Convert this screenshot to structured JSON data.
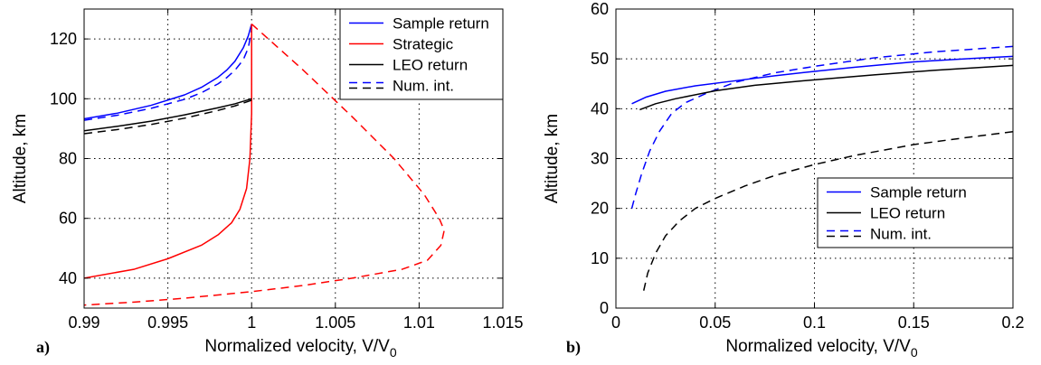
{
  "chart_data": [
    {
      "type": "line",
      "panel_label": "a)",
      "xlabel": "Normalized velocity, V/V",
      "xlabel_sub": "0",
      "ylabel": "Altitude, km",
      "xlim": [
        0.99,
        1.015
      ],
      "ylim": [
        30,
        130
      ],
      "xticks": [
        0.99,
        0.995,
        1,
        1.005,
        1.01,
        1.015
      ],
      "xtick_labels": [
        "0.99",
        "0.995",
        "1",
        "1.005",
        "1.01",
        "1.015"
      ],
      "yticks": [
        40,
        60,
        80,
        100,
        120
      ],
      "ytick_labels": [
        "40",
        "60",
        "80",
        "100",
        "120"
      ],
      "grid": true,
      "legend_position": "top-right",
      "legend": [
        {
          "label": "Sample return",
          "color": "#0000ff",
          "dash": false
        },
        {
          "label": "Strategic",
          "color": "#ff0000",
          "dash": false
        },
        {
          "label": "LEO return",
          "color": "#000000",
          "dash": false
        },
        {
          "label": "Num. int.",
          "color": "#0000ff",
          "dash": true,
          "color2": "#000000"
        }
      ],
      "series": [
        {
          "key": "sample_return",
          "color": "#0000ff",
          "dash": false,
          "points": [
            [
              0.99,
              93.3
            ],
            [
              0.992,
              95.2
            ],
            [
              0.994,
              97.8
            ],
            [
              0.996,
              101.3
            ],
            [
              0.997,
              103.8
            ],
            [
              0.998,
              107.2
            ],
            [
              0.9985,
              109.5
            ],
            [
              0.999,
              112.5
            ],
            [
              0.9995,
              117
            ],
            [
              0.9998,
              121
            ],
            [
              1.0,
              125
            ]
          ]
        },
        {
          "key": "sample_return_num",
          "color": "#0000ff",
          "dash": true,
          "points": [
            [
              0.99,
              92.8
            ],
            [
              0.992,
              94.5
            ],
            [
              0.994,
              96.8
            ],
            [
              0.996,
              99.8
            ],
            [
              0.997,
              102.0
            ],
            [
              0.998,
              105.0
            ],
            [
              0.9985,
              107.0
            ],
            [
              0.999,
              109.5
            ],
            [
              0.9995,
              113
            ],
            [
              0.9998,
              117
            ],
            [
              1.0,
              123
            ]
          ]
        },
        {
          "key": "strategic",
          "color": "#ff0000",
          "dash": false,
          "points": [
            [
              0.99,
              40
            ],
            [
              0.993,
              43
            ],
            [
              0.995,
              46.5
            ],
            [
              0.997,
              51
            ],
            [
              0.998,
              54.5
            ],
            [
              0.9988,
              58.5
            ],
            [
              0.9993,
              63
            ],
            [
              0.9997,
              70
            ],
            [
              0.9999,
              80
            ],
            [
              1.0,
              95
            ],
            [
              1.0,
              125
            ]
          ]
        },
        {
          "key": "strategic_num",
          "color": "#ff0000",
          "dash": true,
          "points": [
            [
              1.0,
              125
            ],
            [
              1.003,
              110
            ],
            [
              1.006,
              94
            ],
            [
              1.0085,
              80
            ],
            [
              1.0103,
              68
            ],
            [
              1.0112,
              60
            ],
            [
              1.0115,
              56
            ],
            [
              1.0113,
              51
            ],
            [
              1.0105,
              46
            ],
            [
              1.009,
              43
            ],
            [
              1.006,
              40
            ],
            [
              1.003,
              37.5
            ],
            [
              1.0,
              35.5
            ],
            [
              0.996,
              33.3
            ],
            [
              0.993,
              32
            ],
            [
              0.99,
              31
            ]
          ]
        },
        {
          "key": "leo_return",
          "color": "#000000",
          "dash": false,
          "points": [
            [
              0.99,
              89.3
            ],
            [
              0.992,
              90.8
            ],
            [
              0.994,
              92.5
            ],
            [
              0.996,
              94.6
            ],
            [
              0.998,
              97.0
            ],
            [
              0.999,
              98.3
            ],
            [
              1.0,
              100
            ]
          ]
        },
        {
          "key": "leo_return_num",
          "color": "#000000",
          "dash": true,
          "points": [
            [
              0.99,
              88.3
            ],
            [
              0.992,
              89.7
            ],
            [
              0.994,
              91.4
            ],
            [
              0.996,
              93.5
            ],
            [
              0.998,
              96.1
            ],
            [
              0.999,
              97.6
            ],
            [
              1.0,
              99.5
            ]
          ]
        }
      ]
    },
    {
      "type": "line",
      "panel_label": "b)",
      "xlabel": "Normalized velocity, V/V",
      "xlabel_sub": "0",
      "ylabel": "Altitude, km",
      "xlim": [
        0,
        0.2
      ],
      "ylim": [
        0,
        60
      ],
      "xticks": [
        0,
        0.05,
        0.1,
        0.15,
        0.2
      ],
      "xtick_labels": [
        "0",
        "0.05",
        "0.1",
        "0.15",
        "0.2"
      ],
      "yticks": [
        0,
        10,
        20,
        30,
        40,
        50,
        60
      ],
      "ytick_labels": [
        "0",
        "10",
        "20",
        "30",
        "40",
        "50",
        "60"
      ],
      "grid": true,
      "legend_position": "bottom-right",
      "legend": [
        {
          "label": "Sample return",
          "color": "#0000ff",
          "dash": false
        },
        {
          "label": "LEO return",
          "color": "#000000",
          "dash": false
        },
        {
          "label": "Num. int.",
          "color": "#0000ff",
          "dash": true,
          "color2": "#000000"
        }
      ],
      "series": [
        {
          "key": "sample_return",
          "color": "#0000ff",
          "dash": false,
          "points": [
            [
              0.008,
              41
            ],
            [
              0.015,
              42.3
            ],
            [
              0.025,
              43.5
            ],
            [
              0.04,
              44.6
            ],
            [
              0.06,
              45.6
            ],
            [
              0.08,
              46.6
            ],
            [
              0.1,
              47.5
            ],
            [
              0.12,
              48.3
            ],
            [
              0.15,
              49.4
            ],
            [
              0.18,
              50.1
            ],
            [
              0.2,
              50.5
            ]
          ]
        },
        {
          "key": "sample_return_num",
          "color": "#0000ff",
          "dash": true,
          "points": [
            [
              0.008,
              20
            ],
            [
              0.01,
              23
            ],
            [
              0.013,
              27
            ],
            [
              0.017,
              31.5
            ],
            [
              0.022,
              35.5
            ],
            [
              0.028,
              39
            ],
            [
              0.035,
              41.2
            ],
            [
              0.045,
              43
            ],
            [
              0.06,
              45.3
            ],
            [
              0.08,
              47.2
            ],
            [
              0.1,
              48.5
            ],
            [
              0.13,
              50.2
            ],
            [
              0.16,
              51.4
            ],
            [
              0.2,
              52.5
            ]
          ]
        },
        {
          "key": "leo_return",
          "color": "#000000",
          "dash": false,
          "points": [
            [
              0.012,
              39.8
            ],
            [
              0.02,
              41
            ],
            [
              0.03,
              42
            ],
            [
              0.05,
              43.6
            ],
            [
              0.07,
              44.7
            ],
            [
              0.1,
              45.8
            ],
            [
              0.13,
              46.8
            ],
            [
              0.16,
              47.7
            ],
            [
              0.2,
              48.7
            ]
          ]
        },
        {
          "key": "leo_return_num",
          "color": "#000000",
          "dash": true,
          "points": [
            [
              0.014,
              3.5
            ],
            [
              0.016,
              7
            ],
            [
              0.02,
              11
            ],
            [
              0.025,
              14.5
            ],
            [
              0.032,
              17.5
            ],
            [
              0.04,
              20
            ],
            [
              0.05,
              22
            ],
            [
              0.065,
              24.5
            ],
            [
              0.08,
              26.6
            ],
            [
              0.1,
              28.8
            ],
            [
              0.12,
              30.6
            ],
            [
              0.15,
              32.8
            ],
            [
              0.18,
              34.4
            ],
            [
              0.2,
              35.4
            ]
          ]
        }
      ]
    }
  ]
}
